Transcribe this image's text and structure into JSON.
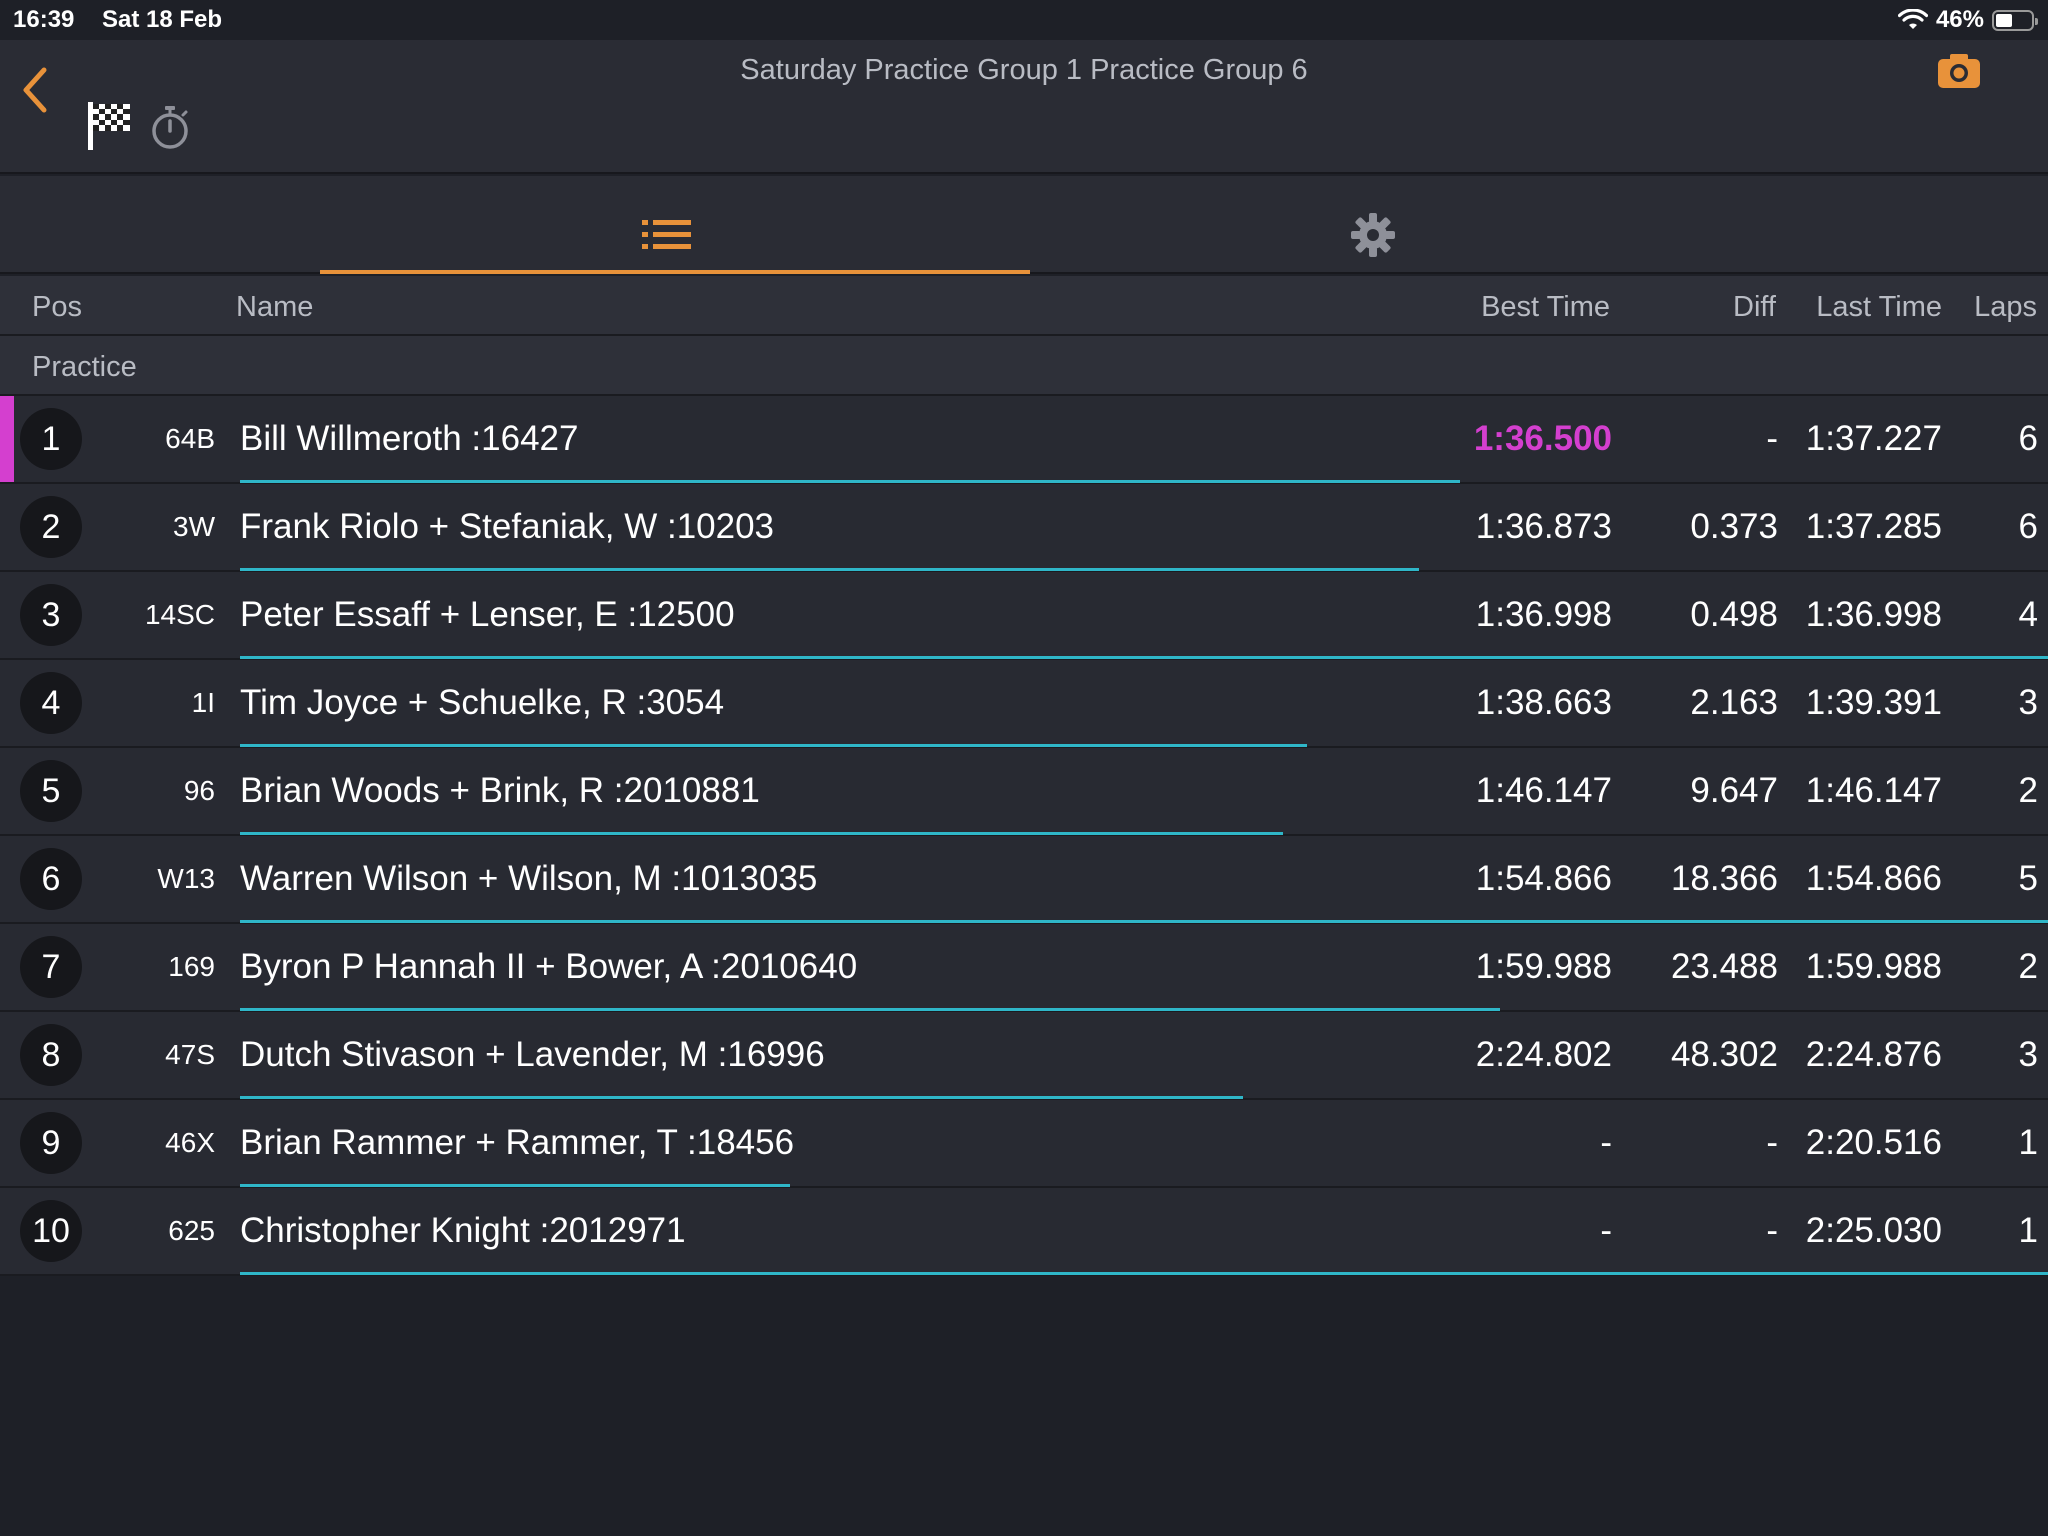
{
  "status_bar": {
    "time": "16:39",
    "date": "Sat 18 Feb",
    "battery": "46%"
  },
  "header": {
    "title": "Saturday Practice Group 1 Practice Group 6"
  },
  "tabs": [
    {
      "icon": "list-icon",
      "active": true
    },
    {
      "icon": "gear-icon",
      "active": false
    }
  ],
  "columns": {
    "pos": "Pos",
    "name": "Name",
    "best_time": "Best Time",
    "diff": "Diff",
    "last_time": "Last Time",
    "laps": "Laps"
  },
  "group_label": "Practice",
  "colors": {
    "accent": "#e8923a",
    "fastest": "#d43fcf",
    "progress": "#2fb6c8",
    "background": "#1e2027"
  },
  "rows": [
    {
      "pos": "1",
      "car": "64B",
      "name": "Bill Willmeroth :16427",
      "best": "1:36.500",
      "diff": "-",
      "last": "1:37.227",
      "laps": "6",
      "fastest": true,
      "progress": 0.675
    },
    {
      "pos": "2",
      "car": "3W",
      "name": "Frank Riolo + Stefaniak, W :10203",
      "best": "1:36.873",
      "diff": "0.373",
      "last": "1:37.285",
      "laps": "6",
      "fastest": false,
      "progress": 0.652
    },
    {
      "pos": "3",
      "car": "14SC",
      "name": "Peter Essaff + Lenser, E :12500",
      "best": "1:36.998",
      "diff": "0.498",
      "last": "1:36.998",
      "laps": "4",
      "fastest": false,
      "progress": 1.0
    },
    {
      "pos": "4",
      "car": "1I",
      "name": "Tim Joyce + Schuelke, R :3054",
      "best": "1:38.663",
      "diff": "2.163",
      "last": "1:39.391",
      "laps": "3",
      "fastest": false,
      "progress": 0.59
    },
    {
      "pos": "5",
      "car": "96",
      "name": "Brian Woods + Brink, R :2010881",
      "best": "1:46.147",
      "diff": "9.647",
      "last": "1:46.147",
      "laps": "2",
      "fastest": false,
      "progress": 0.577
    },
    {
      "pos": "6",
      "car": "W13",
      "name": "Warren Wilson + Wilson, M :1013035",
      "best": "1:54.866",
      "diff": "18.366",
      "last": "1:54.866",
      "laps": "5",
      "fastest": false,
      "progress": 1.0
    },
    {
      "pos": "7",
      "car": "169",
      "name": "Byron P Hannah II + Bower, A :2010640",
      "best": "1:59.988",
      "diff": "23.488",
      "last": "1:59.988",
      "laps": "2",
      "fastest": false,
      "progress": 0.697
    },
    {
      "pos": "8",
      "car": "47S",
      "name": "Dutch Stivason + Lavender, M :16996",
      "best": "2:24.802",
      "diff": "48.302",
      "last": "2:24.876",
      "laps": "3",
      "fastest": false,
      "progress": 0.555
    },
    {
      "pos": "9",
      "car": "46X",
      "name": "Brian Rammer + Rammer, T :18456",
      "best": "-",
      "diff": "-",
      "last": "2:20.516",
      "laps": "1",
      "fastest": false,
      "progress": 0.304
    },
    {
      "pos": "10",
      "car": "625",
      "name": "Christopher Knight :2012971",
      "best": "-",
      "diff": "-",
      "last": "2:25.030",
      "laps": "1",
      "fastest": false,
      "progress": 1.0
    }
  ]
}
